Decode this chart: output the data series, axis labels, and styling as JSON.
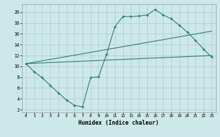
{
  "xlabel": "Humidex (Indice chaleur)",
  "background_color": "#cce8e8",
  "grid_color": "#aacccc",
  "line_color": "#2e7d6e",
  "xlim": [
    -0.5,
    23.5
  ],
  "ylim": [
    1.5,
    21.5
  ],
  "xticks": [
    0,
    1,
    2,
    3,
    4,
    5,
    6,
    7,
    8,
    9,
    10,
    11,
    12,
    13,
    14,
    15,
    16,
    17,
    18,
    19,
    20,
    21,
    22,
    23
  ],
  "yticks": [
    2,
    4,
    6,
    8,
    10,
    12,
    14,
    16,
    18,
    20
  ],
  "line1_x": [
    0,
    1,
    2,
    3,
    4,
    5,
    6,
    7,
    8,
    9,
    10,
    11,
    12,
    13,
    14,
    15,
    16,
    17,
    18,
    19,
    20,
    21,
    22,
    23
  ],
  "line1_y": [
    10.5,
    9.0,
    7.9,
    6.5,
    5.1,
    3.8,
    2.8,
    2.5,
    7.9,
    8.1,
    12.3,
    17.3,
    19.2,
    19.2,
    19.3,
    19.5,
    20.5,
    19.5,
    18.8,
    17.6,
    16.3,
    14.8,
    13.2,
    11.7
  ],
  "line2_x": [
    0,
    23
  ],
  "line2_y": [
    10.5,
    16.5
  ],
  "line3_x": [
    0,
    23
  ],
  "line3_y": [
    10.5,
    12.0
  ]
}
